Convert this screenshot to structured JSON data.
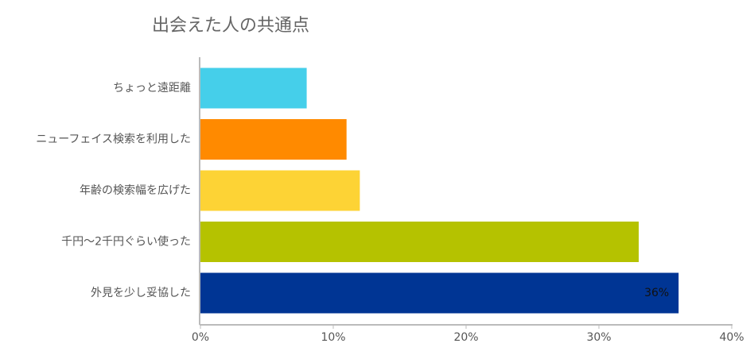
{
  "chart_data": {
    "type": "barh",
    "title": "出会えた人の共通点",
    "categories": [
      "ちょっと遠距離",
      "ニューフェイス検索を利用した",
      "年齢の検索幅を広げた",
      "千円〜2千円ぐらい使った",
      "外見を少し妥協した"
    ],
    "values": [
      8,
      11,
      12,
      33,
      36
    ],
    "value_labels": [
      null,
      null,
      null,
      null,
      "36%"
    ],
    "colors": [
      "#45cfea",
      "#ff8a00",
      "#fdd335",
      "#b5c200",
      "#003594"
    ],
    "xlim": [
      0,
      40
    ],
    "xticks": [
      {
        "value": 0,
        "label": "0%"
      },
      {
        "value": 10,
        "label": "10%"
      },
      {
        "value": 20,
        "label": "20%"
      },
      {
        "value": 30,
        "label": "30%"
      },
      {
        "value": 40,
        "label": "40%"
      }
    ]
  }
}
